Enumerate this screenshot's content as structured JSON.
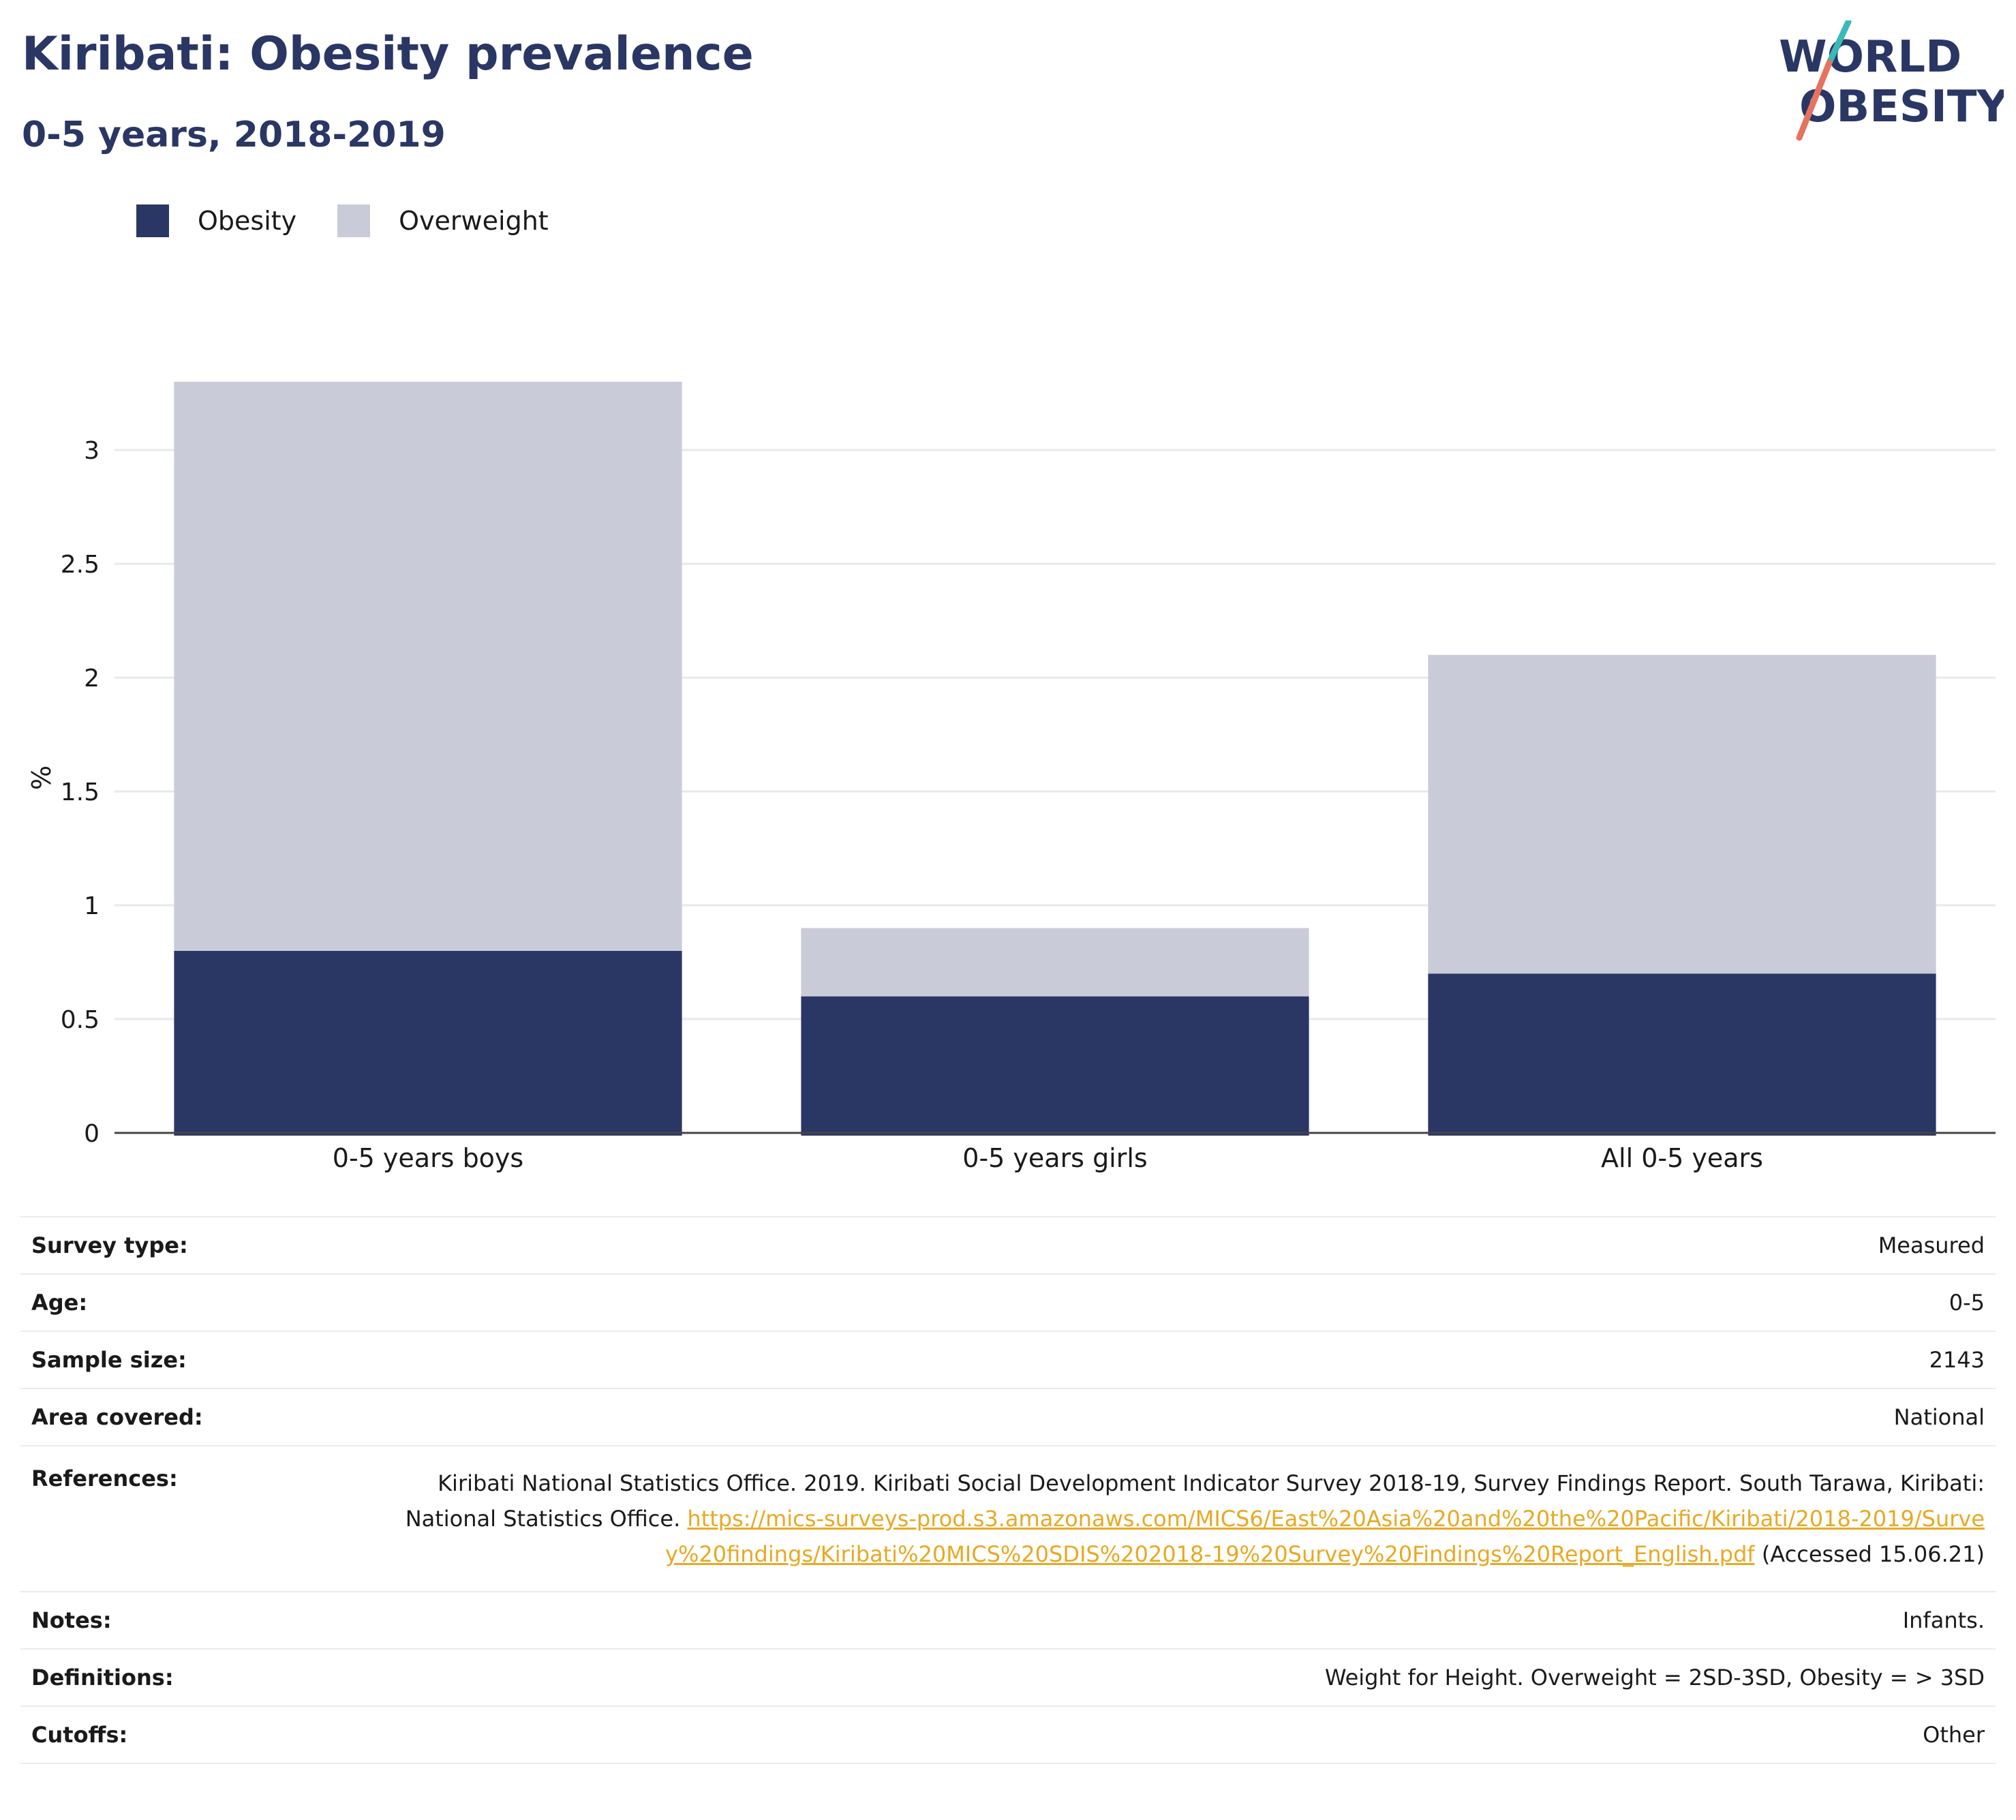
{
  "header": {
    "title": "Kiribati: Obesity prevalence",
    "subtitle": "0-5 years, 2018-2019"
  },
  "logo": {
    "line1": "WORLD",
    "line2": "OBESITY",
    "colors": {
      "navy": "#2a3764",
      "teal": "#3ab9b9",
      "coral": "#e5735f"
    }
  },
  "colors": {
    "obesity": "#2a3764",
    "overweight": "#c9ccd8",
    "link": "#e7a924",
    "grid": "#e8e9ee"
  },
  "chart_data": {
    "type": "bar",
    "stacked": true,
    "categories": [
      "0-5 years boys",
      "0-5 years girls",
      "All 0-5 years"
    ],
    "series": [
      {
        "name": "Obesity",
        "values": [
          0.8,
          0.6,
          0.7
        ]
      },
      {
        "name": "Overweight",
        "values": [
          2.5,
          0.3,
          1.4
        ]
      }
    ],
    "totals": [
      3.3,
      0.9,
      2.1
    ],
    "ylabel": "%",
    "xlabel": "",
    "ylim": [
      0,
      3.3
    ],
    "yticks": [
      0,
      0.5,
      1,
      1.5,
      2,
      2.5,
      3
    ],
    "ytick_labels": [
      "0",
      "0.5",
      "1",
      "1.5",
      "2",
      "2.5",
      "3"
    ],
    "grid": true,
    "legend_position": "top-left"
  },
  "meta": {
    "survey_type": {
      "label": "Survey type:",
      "value": "Measured"
    },
    "age": {
      "label": "Age:",
      "value": "0-5"
    },
    "sample_size": {
      "label": "Sample size:",
      "value": "2143"
    },
    "area": {
      "label": "Area covered:",
      "value": "National"
    },
    "references": {
      "label": "References:",
      "text": "Kiribati National Statistics Office. 2019. Kiribati Social Development Indicator Survey 2018-19, Survey Findings Report. South Tarawa, Kiribati: National Statistics Office.",
      "link": "https://mics-surveys-prod.s3.amazonaws.com/MICS6/East%20Asia%20and%20the%20Pacific/Kiribati/2018-2019/Survey%20findings/Kiribati%20MICS%20SDIS%202018-19%20Survey%20Findings%20Report_English.pdf",
      "suffix": "(Accessed 15.06.21)"
    },
    "notes": {
      "label": "Notes:",
      "value": "Infants."
    },
    "definitions": {
      "label": "Definitions:",
      "value": "Weight for Height. Overweight = 2SD-3SD, Obesity = > 3SD"
    },
    "cutoffs": {
      "label": "Cutoffs:",
      "value": "Other"
    }
  }
}
